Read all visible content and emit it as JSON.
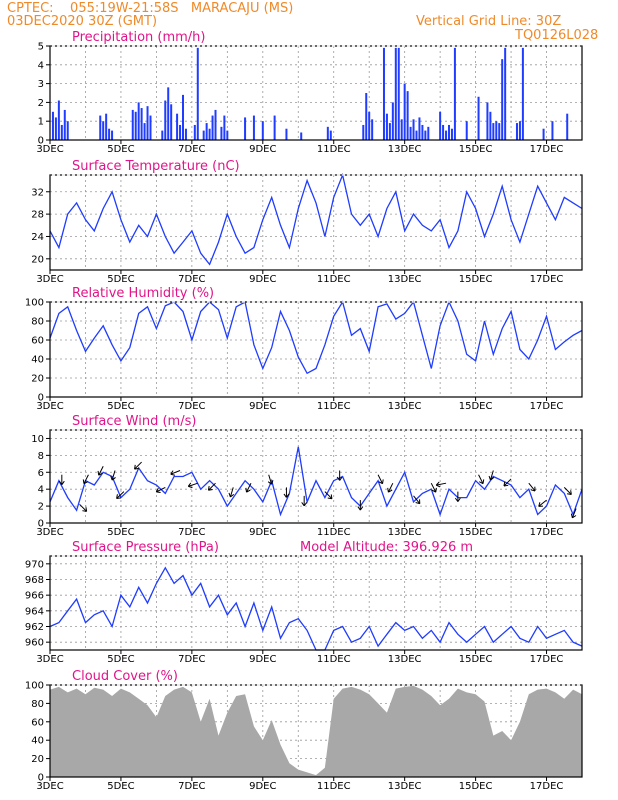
{
  "header": {
    "line1": "CPTEC:    055:19W-21:58S   MARACAJU (MS)",
    "line2": "03DEC2020 30Z (GMT)",
    "grid_note": "Vertical Grid Line: 30Z",
    "code": "TQ0126L028",
    "model_altitude": "Model Altitude: 396.926 m"
  },
  "colors": {
    "header": "#ef8a2a",
    "title": "#e0158a",
    "series": "#1f3cff",
    "cloud": "#a8a8a8",
    "arrow": "#000000"
  },
  "x_labels": [
    "3DEC",
    "5DEC",
    "7DEC",
    "9DEC",
    "11DEC",
    "13DEC",
    "15DEC",
    "17DEC"
  ],
  "chart_data": [
    {
      "id": "precip",
      "type": "bar",
      "title": "Precipitation (mm/h)",
      "ylim": [
        0,
        5
      ],
      "yticks": [
        0,
        1,
        2,
        3,
        4,
        5
      ],
      "grid": true,
      "x_unit": "hours since 03DEC 00Z",
      "xlim": [
        0,
        360
      ],
      "series": [
        {
          "x": [
            2,
            4,
            6,
            8,
            10,
            12,
            34,
            36,
            38,
            40,
            42,
            56,
            58,
            60,
            62,
            64,
            66,
            68,
            76,
            78,
            80,
            82,
            86,
            88,
            90,
            92,
            98,
            100,
            104,
            106,
            108,
            110,
            112,
            116,
            118,
            120,
            132,
            138,
            144,
            152,
            160,
            170,
            188,
            190,
            212,
            214,
            216,
            218,
            226,
            228,
            230,
            232,
            234,
            236,
            238,
            240,
            242,
            244,
            246,
            248,
            250,
            252,
            254,
            256,
            264,
            266,
            268,
            270,
            272,
            274,
            282,
            290,
            296,
            298,
            300,
            302,
            304,
            306,
            308,
            316,
            318,
            320,
            334,
            340,
            350
          ],
          "y": [
            1.5,
            1.2,
            2.1,
            0.8,
            1.6,
            1.0,
            1.3,
            1.0,
            1.4,
            0.6,
            0.5,
            1.6,
            1.5,
            2.0,
            1.7,
            0.9,
            1.8,
            1.3,
            0.5,
            2.1,
            2.8,
            1.9,
            1.4,
            0.8,
            2.4,
            0.6,
            0.8,
            4.9,
            0.5,
            0.9,
            0.6,
            1.3,
            1.6,
            0.7,
            1.3,
            0.5,
            1.2,
            1.3,
            1.0,
            1.3,
            0.6,
            0.4,
            0.7,
            0.5,
            0.8,
            2.5,
            1.5,
            1.1,
            4.9,
            1.4,
            0.9,
            2.0,
            4.9,
            4.9,
            1.1,
            3.0,
            2.6,
            0.7,
            1.1,
            0.5,
            1.2,
            0.8,
            0.5,
            0.7,
            1.5,
            0.8,
            0.5,
            0.8,
            0.6,
            4.9,
            1.0,
            2.3,
            2.0,
            1.5,
            0.9,
            1.0,
            0.9,
            4.3,
            4.9,
            0.9,
            1.0,
            4.9,
            0.6,
            1.0,
            1.4
          ]
        }
      ]
    },
    {
      "id": "temp",
      "type": "line",
      "title": "Surface Temperature (nC)",
      "ylim": [
        18,
        35
      ],
      "yticks": [
        20,
        24,
        28,
        32
      ],
      "grid": true,
      "xlim": [
        0,
        360
      ],
      "series": [
        {
          "x": [
            0,
            6,
            12,
            18,
            24,
            30,
            36,
            42,
            48,
            54,
            60,
            66,
            72,
            78,
            84,
            90,
            96,
            102,
            108,
            114,
            120,
            126,
            132,
            138,
            144,
            150,
            156,
            162,
            168,
            174,
            180,
            186,
            192,
            198,
            204,
            210,
            216,
            222,
            228,
            234,
            240,
            246,
            252,
            258,
            264,
            270,
            276,
            282,
            288,
            294,
            300,
            306,
            312,
            318,
            324,
            330,
            336,
            342,
            348,
            354,
            360
          ],
          "y": [
            25,
            22,
            28,
            30,
            27,
            25,
            29,
            32,
            27,
            23,
            26,
            24,
            28,
            24,
            21,
            23,
            25,
            21,
            19,
            23,
            28,
            24,
            21,
            22,
            27,
            31,
            26,
            22,
            29,
            34,
            30,
            24,
            31,
            35,
            28,
            26,
            28,
            24,
            29,
            32,
            25,
            28,
            26,
            25,
            27,
            22,
            25,
            32,
            29,
            24,
            28,
            33,
            27,
            23,
            28,
            33,
            30,
            27,
            31,
            30,
            29
          ]
        }
      ]
    },
    {
      "id": "rh",
      "type": "line",
      "title": "Relative Humidity (%)",
      "ylim": [
        0,
        100
      ],
      "yticks": [
        0,
        20,
        40,
        60,
        80,
        100
      ],
      "grid": true,
      "xlim": [
        0,
        360
      ],
      "series": [
        {
          "x": [
            0,
            6,
            12,
            18,
            24,
            30,
            36,
            42,
            48,
            54,
            60,
            66,
            72,
            78,
            84,
            90,
            96,
            102,
            108,
            114,
            120,
            126,
            132,
            138,
            144,
            150,
            156,
            162,
            168,
            174,
            180,
            186,
            192,
            198,
            204,
            210,
            216,
            222,
            228,
            234,
            240,
            246,
            252,
            258,
            264,
            270,
            276,
            282,
            288,
            294,
            300,
            306,
            312,
            318,
            324,
            330,
            336,
            342,
            348,
            354,
            360
          ],
          "y": [
            62,
            88,
            95,
            70,
            48,
            62,
            75,
            55,
            38,
            52,
            88,
            95,
            72,
            96,
            100,
            90,
            60,
            90,
            100,
            92,
            62,
            95,
            100,
            55,
            30,
            52,
            90,
            70,
            42,
            25,
            30,
            55,
            85,
            100,
            65,
            72,
            48,
            95,
            98,
            82,
            88,
            100,
            65,
            30,
            75,
            100,
            80,
            45,
            38,
            80,
            45,
            72,
            90,
            50,
            40,
            60,
            85,
            50,
            58,
            65,
            70
          ]
        }
      ]
    },
    {
      "id": "wind",
      "type": "line",
      "title": "Surface Wind (m/s)",
      "ylim": [
        0,
        11
      ],
      "yticks": [
        0,
        2,
        4,
        6,
        8,
        10
      ],
      "grid": true,
      "xlim": [
        0,
        360
      ],
      "series": [
        {
          "x": [
            0,
            6,
            12,
            18,
            24,
            30,
            36,
            42,
            48,
            54,
            60,
            66,
            72,
            78,
            84,
            90,
            96,
            102,
            108,
            114,
            120,
            126,
            132,
            138,
            144,
            150,
            156,
            162,
            168,
            174,
            180,
            186,
            192,
            198,
            204,
            210,
            216,
            222,
            228,
            234,
            240,
            246,
            252,
            258,
            264,
            270,
            276,
            282,
            288,
            294,
            300,
            306,
            312,
            318,
            324,
            330,
            336,
            342,
            348,
            354,
            360
          ],
          "y": [
            2.5,
            5,
            3,
            1.5,
            5,
            4.5,
            6,
            5.5,
            3,
            4,
            6.5,
            5,
            4.5,
            3.5,
            5.5,
            5.5,
            6,
            4,
            5,
            4,
            2,
            3.5,
            5,
            4,
            2.5,
            5,
            1,
            3.5,
            9,
            2.5,
            5,
            3,
            5,
            5.5,
            3,
            2,
            3.5,
            5,
            2,
            4,
            6,
            2.5,
            3.5,
            4,
            1,
            4,
            3,
            3,
            5,
            4,
            5.5,
            5,
            4.5,
            3,
            4,
            1,
            2,
            4.5,
            3.5,
            1,
            4
          ]
        }
      ],
      "arrows": [
        {
          "x": 8,
          "dx": 0,
          "dy": 1
        },
        {
          "x": 20,
          "dx": 1,
          "dy": 1
        },
        {
          "x": 26,
          "dx": -0.5,
          "dy": 1
        },
        {
          "x": 36,
          "dx": -1,
          "dy": 2
        },
        {
          "x": 44,
          "dx": -0.3,
          "dy": 1
        },
        {
          "x": 50,
          "dx": -1.6,
          "dy": 1.5
        },
        {
          "x": 62,
          "dx": -1.2,
          "dy": 1.2
        },
        {
          "x": 78,
          "dx": -2,
          "dy": 1
        },
        {
          "x": 88,
          "dx": -2,
          "dy": 0.8
        },
        {
          "x": 100,
          "dx": -1.5,
          "dy": 0.5
        },
        {
          "x": 112,
          "dx": -1,
          "dy": 1
        },
        {
          "x": 124,
          "dx": -0.3,
          "dy": 1
        },
        {
          "x": 136,
          "dx": -0.5,
          "dy": 1
        },
        {
          "x": 148,
          "dx": 0.3,
          "dy": 1
        },
        {
          "x": 160,
          "dx": 0,
          "dy": 1
        },
        {
          "x": 172,
          "dx": 0,
          "dy": 1
        },
        {
          "x": 186,
          "dx": 1,
          "dy": 1
        },
        {
          "x": 196,
          "dx": 0,
          "dy": 1
        },
        {
          "x": 210,
          "dx": 0,
          "dy": 1
        },
        {
          "x": 222,
          "dx": 0.5,
          "dy": 1
        },
        {
          "x": 232,
          "dx": -0.5,
          "dy": 1
        },
        {
          "x": 246,
          "dx": 0.8,
          "dy": 1
        },
        {
          "x": 258,
          "dx": 0.5,
          "dy": 1
        },
        {
          "x": 268,
          "dx": -1,
          "dy": 0.2
        },
        {
          "x": 276,
          "dx": 0,
          "dy": 1
        },
        {
          "x": 290,
          "dx": 0.5,
          "dy": 1
        },
        {
          "x": 300,
          "dx": -0.3,
          "dy": 1
        },
        {
          "x": 312,
          "dx": -0.8,
          "dy": 0.8
        },
        {
          "x": 324,
          "dx": 0.8,
          "dy": 1
        },
        {
          "x": 336,
          "dx": -1,
          "dy": 0.8
        },
        {
          "x": 348,
          "dx": 1,
          "dy": 1
        },
        {
          "x": 356,
          "dx": -0.4,
          "dy": 1
        }
      ]
    },
    {
      "id": "pres",
      "type": "line",
      "title": "Surface Pressure (hPa)",
      "ylim": [
        959,
        971
      ],
      "yticks": [
        960,
        962,
        964,
        966,
        968,
        970
      ],
      "grid": true,
      "xlim": [
        0,
        360
      ],
      "series": [
        {
          "x": [
            0,
            6,
            12,
            18,
            24,
            30,
            36,
            42,
            48,
            54,
            60,
            66,
            72,
            78,
            84,
            90,
            96,
            102,
            108,
            114,
            120,
            126,
            132,
            138,
            144,
            150,
            156,
            162,
            168,
            174,
            180,
            186,
            192,
            198,
            204,
            210,
            216,
            222,
            228,
            234,
            240,
            246,
            252,
            258,
            264,
            270,
            276,
            282,
            288,
            294,
            300,
            306,
            312,
            318,
            324,
            330,
            336,
            342,
            348,
            354,
            360
          ],
          "y": [
            962,
            962.5,
            964,
            965.5,
            962.5,
            963.5,
            964,
            962,
            966,
            964.5,
            967,
            965,
            967.5,
            969.5,
            967.5,
            968.5,
            966,
            967.5,
            964.5,
            966,
            963.5,
            965,
            962,
            965,
            961.5,
            964.5,
            960.5,
            962.5,
            963,
            961.5,
            959,
            959,
            961.5,
            962,
            960,
            960.5,
            962,
            959.5,
            961,
            962.5,
            961.5,
            962,
            960.5,
            961.5,
            960,
            962.5,
            961,
            960,
            961,
            962,
            960,
            961,
            962,
            960.5,
            960,
            962,
            960.5,
            961,
            961.5,
            960,
            959.5
          ]
        }
      ]
    },
    {
      "id": "cloud",
      "type": "area",
      "title": "Cloud Cover (%)",
      "ylim": [
        0,
        100
      ],
      "yticks": [
        0,
        20,
        40,
        60,
        80,
        100
      ],
      "grid": true,
      "xlim": [
        0,
        360
      ],
      "series": [
        {
          "x": [
            0,
            6,
            12,
            18,
            24,
            30,
            36,
            42,
            48,
            54,
            60,
            66,
            72,
            78,
            84,
            90,
            96,
            102,
            108,
            114,
            120,
            126,
            132,
            138,
            144,
            150,
            156,
            162,
            168,
            174,
            180,
            186,
            192,
            198,
            204,
            210,
            216,
            222,
            228,
            234,
            240,
            246,
            252,
            258,
            264,
            270,
            276,
            282,
            288,
            294,
            300,
            306,
            312,
            318,
            324,
            330,
            336,
            342,
            348,
            354,
            360
          ],
          "y": [
            95,
            98,
            92,
            96,
            90,
            97,
            95,
            88,
            96,
            92,
            85,
            78,
            65,
            88,
            95,
            98,
            92,
            60,
            85,
            45,
            70,
            88,
            90,
            55,
            40,
            62,
            35,
            15,
            8,
            5,
            2,
            10,
            85,
            96,
            98,
            95,
            90,
            80,
            70,
            96,
            98,
            99,
            95,
            88,
            78,
            85,
            96,
            92,
            90,
            82,
            45,
            50,
            40,
            60,
            90,
            95,
            96,
            92,
            85,
            95,
            90
          ]
        }
      ]
    }
  ]
}
